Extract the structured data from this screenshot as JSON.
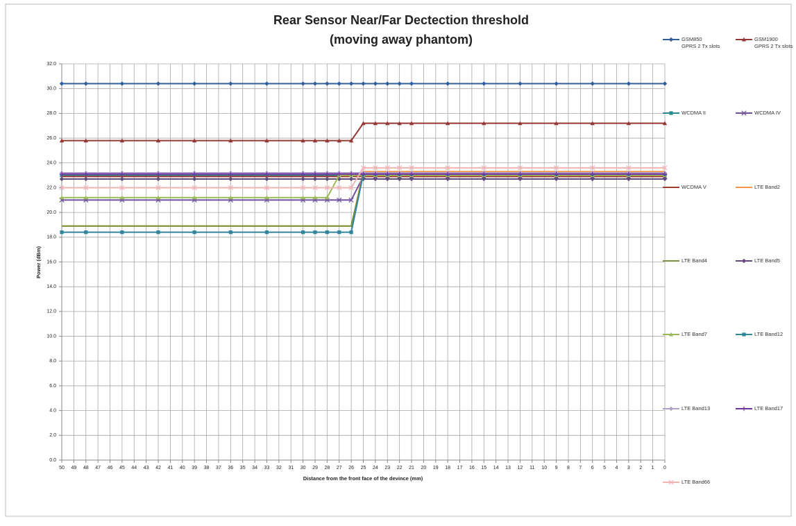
{
  "chart_data": {
    "type": "line",
    "title": "Rear Sensor Near/Far Dectection threshold",
    "subtitle": "(moving away phantom)",
    "x_label": "Distance  from  the front face of the devince  (mm)",
    "y_label": "Power (dBm)",
    "xlim": [
      50,
      0
    ],
    "xticks": [
      50,
      49,
      48,
      47,
      46,
      45,
      44,
      43,
      42,
      41,
      40,
      39,
      38,
      37,
      36,
      35,
      34,
      33,
      32,
      31,
      30,
      29,
      28,
      27,
      26,
      25,
      24,
      23,
      22,
      21,
      20,
      19,
      18,
      17,
      16,
      15,
      14,
      13,
      12,
      11,
      10,
      9,
      8,
      7,
      6,
      5,
      4,
      3,
      2,
      1,
      0
    ],
    "ylim": [
      0,
      32
    ],
    "yticks": [
      {
        "value": 0,
        "label": "0.0"
      },
      {
        "value": 2,
        "label": "2.0"
      },
      {
        "value": 4,
        "label": "4.0"
      },
      {
        "value": 6,
        "label": "6.0"
      },
      {
        "value": 8,
        "label": "8.0"
      },
      {
        "value": 10,
        "label": "10.0"
      },
      {
        "value": 12,
        "label": "12.0"
      },
      {
        "value": 14,
        "label": "14.0"
      },
      {
        "value": 16,
        "label": "16.0"
      },
      {
        "value": 18,
        "label": "18.0"
      },
      {
        "value": 20,
        "label": "20.0"
      },
      {
        "value": 22,
        "label": "22.0"
      },
      {
        "value": 24,
        "label": "24.0"
      },
      {
        "value": 26,
        "label": "26.0"
      },
      {
        "value": 28,
        "label": "28.0"
      },
      {
        "value": 30,
        "label": "30.0"
      },
      {
        "value": 32,
        "label": "32.0"
      }
    ],
    "grid": true,
    "legend": "right",
    "x": [
      50,
      48,
      45,
      42,
      39,
      36,
      33,
      30,
      29,
      28,
      27,
      26,
      25,
      24,
      23,
      22,
      21,
      18,
      15,
      12,
      9,
      6,
      3,
      0
    ],
    "series": [
      {
        "name": "GSM850\nGPRS 2 Tx slots",
        "color": "#2e5f9a",
        "marker": "diamond",
        "values": [
          30.4,
          30.4,
          30.4,
          30.4,
          30.4,
          30.4,
          30.4,
          30.4,
          30.4,
          30.4,
          30.4,
          30.4,
          30.4,
          30.4,
          30.4,
          30.4,
          30.4,
          30.4,
          30.4,
          30.4,
          30.4,
          30.4,
          30.4,
          30.4
        ]
      },
      {
        "name": "GSM1900\nGPRS 2 Tx slots",
        "color": "#953735",
        "marker": "triangle",
        "values": [
          25.8,
          25.8,
          25.8,
          25.8,
          25.8,
          25.8,
          25.8,
          25.8,
          25.8,
          25.8,
          25.8,
          25.8,
          27.2,
          27.2,
          27.2,
          27.2,
          27.2,
          27.2,
          27.2,
          27.2,
          27.2,
          27.2,
          27.2,
          27.2
        ]
      },
      {
        "name": "WCDMA II",
        "color": "#2c8a8e",
        "marker": "square",
        "values": [
          23.0,
          23.0,
          23.0,
          23.0,
          23.0,
          23.0,
          23.0,
          23.0,
          23.0,
          23.0,
          23.0,
          23.0,
          23.0,
          23.0,
          23.0,
          23.0,
          23.0,
          23.0,
          23.0,
          23.0,
          23.0,
          23.0,
          23.0,
          23.0
        ]
      },
      {
        "name": "WCDMA IV",
        "color": "#7050a0",
        "marker": "x",
        "values": [
          21.0,
          21.0,
          21.0,
          21.0,
          21.0,
          21.0,
          21.0,
          21.0,
          21.0,
          21.0,
          21.0,
          21.0,
          22.9,
          22.9,
          22.9,
          22.9,
          22.9,
          22.9,
          22.9,
          22.9,
          22.9,
          22.9,
          22.9,
          22.9
        ]
      },
      {
        "name": "WCDMA V",
        "color": "#9b3b34",
        "marker": "none",
        "values": [
          22.9,
          22.9,
          22.9,
          22.9,
          22.9,
          22.9,
          22.9,
          22.9,
          22.9,
          22.9,
          22.9,
          22.9,
          22.9,
          22.9,
          22.9,
          22.9,
          22.9,
          22.9,
          22.9,
          22.9,
          22.9,
          22.9,
          22.9,
          22.9
        ]
      },
      {
        "name": "LTE Band2",
        "color": "#f79646",
        "marker": "none",
        "values": [
          18.9,
          18.9,
          18.9,
          18.9,
          18.9,
          18.9,
          18.9,
          18.9,
          18.9,
          18.9,
          18.9,
          18.9,
          23.3,
          23.3,
          23.3,
          23.3,
          23.3,
          23.3,
          23.3,
          23.3,
          23.3,
          23.3,
          23.3,
          23.3
        ]
      },
      {
        "name": "LTE Band4",
        "color": "#77933c",
        "marker": "none",
        "values": [
          18.9,
          18.9,
          18.9,
          18.9,
          18.9,
          18.9,
          18.9,
          18.9,
          18.9,
          18.9,
          18.9,
          18.9,
          23.1,
          23.1,
          23.1,
          23.1,
          23.1,
          23.1,
          23.1,
          23.1,
          23.1,
          23.1,
          23.1,
          23.1
        ]
      },
      {
        "name": "LTE Band5",
        "color": "#604a7b",
        "marker": "diamond",
        "values": [
          22.7,
          22.7,
          22.7,
          22.7,
          22.7,
          22.7,
          22.7,
          22.7,
          22.7,
          22.7,
          22.7,
          22.7,
          22.7,
          22.7,
          22.7,
          22.7,
          22.7,
          22.7,
          22.7,
          22.7,
          22.7,
          22.7,
          22.7,
          22.7
        ]
      },
      {
        "name": "LTE Band7",
        "color": "#9bbb59",
        "marker": "triangle",
        "values": [
          21.2,
          21.2,
          21.2,
          21.2,
          21.2,
          21.2,
          21.2,
          21.2,
          21.2,
          21.2,
          23.0,
          23.0,
          23.0,
          23.0,
          23.0,
          23.0,
          23.0,
          23.0,
          23.0,
          23.0,
          23.0,
          23.0,
          23.0,
          23.0
        ]
      },
      {
        "name": "LTE Band12",
        "color": "#31859c",
        "marker": "square",
        "values": [
          18.4,
          18.4,
          18.4,
          18.4,
          18.4,
          18.4,
          18.4,
          18.4,
          18.4,
          18.4,
          18.4,
          18.4,
          23.1,
          23.1,
          23.1,
          23.1,
          23.1,
          23.1,
          23.1,
          23.1,
          23.1,
          23.1,
          23.1,
          23.1
        ]
      },
      {
        "name": "LTE Band13",
        "color": "#b3a2c7",
        "marker": "diamond",
        "values": [
          23.2,
          23.2,
          23.2,
          23.2,
          23.2,
          23.2,
          23.2,
          23.2,
          23.2,
          23.2,
          23.2,
          23.2,
          23.2,
          23.2,
          23.2,
          23.2,
          23.2,
          23.2,
          23.2,
          23.2,
          23.2,
          23.2,
          23.2,
          23.2
        ]
      },
      {
        "name": "LTE Band17",
        "color": "#7030a0",
        "marker": "plus",
        "values": [
          23.1,
          23.1,
          23.1,
          23.1,
          23.1,
          23.1,
          23.1,
          23.1,
          23.1,
          23.1,
          23.1,
          23.1,
          23.1,
          23.1,
          23.1,
          23.1,
          23.1,
          23.1,
          23.1,
          23.1,
          23.1,
          23.1,
          23.1,
          23.1
        ]
      },
      {
        "name": "LTE Band66",
        "color": "#f2b3b3",
        "marker": "x",
        "values": [
          22.0,
          22.0,
          22.0,
          22.0,
          22.0,
          22.0,
          22.0,
          22.0,
          22.0,
          22.0,
          22.0,
          22.0,
          23.6,
          23.6,
          23.6,
          23.6,
          23.6,
          23.6,
          23.6,
          23.6,
          23.6,
          23.6,
          23.6,
          23.6
        ]
      }
    ]
  }
}
